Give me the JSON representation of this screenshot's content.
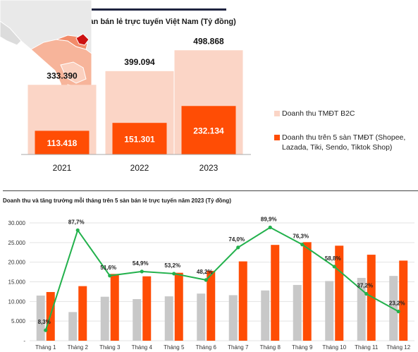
{
  "colors": {
    "b2c": "#fbd5c6",
    "platform": "#ff4d05",
    "gray": "#c8c8c8",
    "growth": "#22b14c",
    "rule": "#1f2440"
  },
  "top_chart": {
    "title": "Doanh thu trên 5 sàn bán lẻ trực tuyến Việt Nam (Tỷ đồng)",
    "legend_b2c": "Doanh thu TMĐT B2C",
    "legend_platform": "Doanh thu trên 5 sàn TMĐT (Shopee, Lazada, Tiki, Sendo, Tiktok Shop)"
  },
  "bottom_chart": {
    "title": "Doanh thu và tăng trưởng mỗi tháng trên 5 sàn bán lẻ trực tuyến năm 2023 (Tỷ đồng)"
  },
  "chart_data": [
    {
      "type": "bar",
      "categories": [
        "2021",
        "2022",
        "2023"
      ],
      "series": [
        {
          "name": "Doanh thu TMĐT B2C",
          "values": [
            333390,
            399094,
            498868
          ],
          "labels": [
            "333.390",
            "399.094",
            "498.868"
          ]
        },
        {
          "name": "Doanh thu trên 5 sàn TMĐT (Shopee, Lazada, Tiki, Sendo, Tiktok Shop)",
          "values": [
            113418,
            151301,
            232134
          ],
          "labels": [
            "113.418",
            "151.301",
            "232.134"
          ]
        }
      ],
      "ylim": [
        0,
        520000
      ]
    },
    {
      "type": "bar",
      "categories": [
        "Tháng 1",
        "Tháng 2",
        "Tháng 3",
        "Tháng 4",
        "Tháng 5",
        "Tháng 6",
        "Tháng 7",
        "Tháng 8",
        "Tháng 9",
        "Tháng 10",
        "Tháng 11",
        "Tháng 12"
      ],
      "yticks": [
        "-",
        "5.000",
        "10.000",
        "15.000",
        "20.000",
        "25.000",
        "30.000"
      ],
      "ylim": [
        0,
        30000
      ],
      "series": [
        {
          "kind": "bar",
          "values": [
            11500,
            7300,
            11200,
            10600,
            11300,
            12000,
            11600,
            12800,
            14200,
            15200,
            16000,
            16500
          ]
        },
        {
          "kind": "bar",
          "values": [
            12400,
            13900,
            17000,
            16400,
            17300,
            17800,
            20200,
            24400,
            25100,
            24200,
            21900,
            20400
          ]
        },
        {
          "kind": "line",
          "values": [
            8.3,
            87.7,
            51.6,
            54.9,
            53.2,
            48.2,
            74.0,
            89.9,
            76.3,
            58.8,
            37.2,
            23.2
          ],
          "labels": [
            "8,3%",
            "87,7%",
            "51,6%",
            "54,9%",
            "53,2%",
            "48,2%",
            "74,0%",
            "89,9%",
            "76,3%",
            "58,8%",
            "37,2%",
            "23,2%"
          ]
        }
      ]
    }
  ]
}
